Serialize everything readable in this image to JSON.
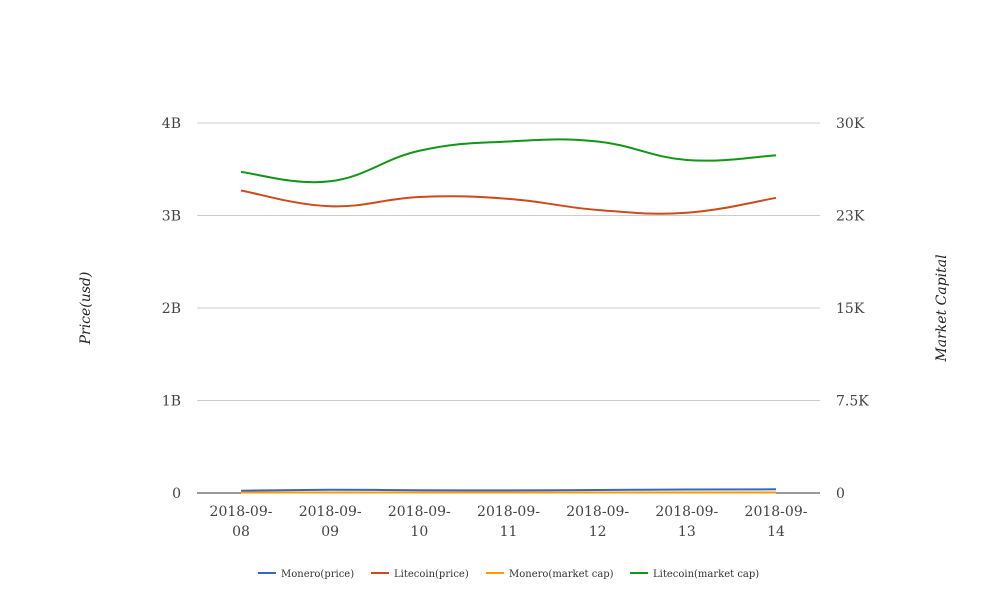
{
  "chart_data": {
    "type": "line",
    "x": [
      "2018-09-08",
      "2018-09-09",
      "2018-09-10",
      "2018-09-11",
      "2018-09-12",
      "2018-09-13",
      "2018-09-14"
    ],
    "x_tick_labels": [
      [
        "2018-09-",
        "08"
      ],
      [
        "2018-09-",
        "09"
      ],
      [
        "2018-09-",
        "10"
      ],
      [
        "2018-09-",
        "11"
      ],
      [
        "2018-09-",
        "12"
      ],
      [
        "2018-09-",
        "13"
      ],
      [
        "2018-09-",
        "14"
      ]
    ],
    "y_left": {
      "label": "Price(usd)",
      "range": [
        0,
        4000000000
      ],
      "ticks": [
        0,
        1000000000,
        2000000000,
        3000000000,
        4000000000
      ],
      "tick_labels": [
        "0",
        "1B",
        "2B",
        "3B",
        "4B"
      ]
    },
    "y_right": {
      "label": "Market Capital",
      "range": [
        0,
        30000
      ],
      "ticks": [
        0,
        7500,
        15000,
        22500,
        30000
      ],
      "tick_labels": [
        "0",
        "7.5K",
        "15K",
        "23K",
        "30K"
      ]
    },
    "grid": true,
    "legend_position": "bottom",
    "series": [
      {
        "name": "Monero(price)",
        "color": "#3366cc",
        "axis": "left",
        "values": [
          25000000,
          35000000,
          30000000,
          28000000,
          32000000,
          38000000,
          40000000
        ]
      },
      {
        "name": "Litecoin(price)",
        "color": "#cc4a1d",
        "axis": "left",
        "values": [
          3270000000,
          3100000000,
          3200000000,
          3180000000,
          3060000000,
          3030000000,
          3190000000
        ]
      },
      {
        "name": "Monero(market cap)",
        "color": "#ff9900",
        "axis": "left",
        "values": [
          5000000,
          5000000,
          5000000,
          5000000,
          5000000,
          5000000,
          5000000
        ]
      },
      {
        "name": "Litecoin(market cap)",
        "color": "#109618",
        "axis": "left",
        "values": [
          3470000000,
          3370000000,
          3700000000,
          3800000000,
          3800000000,
          3600000000,
          3650000000
        ]
      }
    ]
  }
}
